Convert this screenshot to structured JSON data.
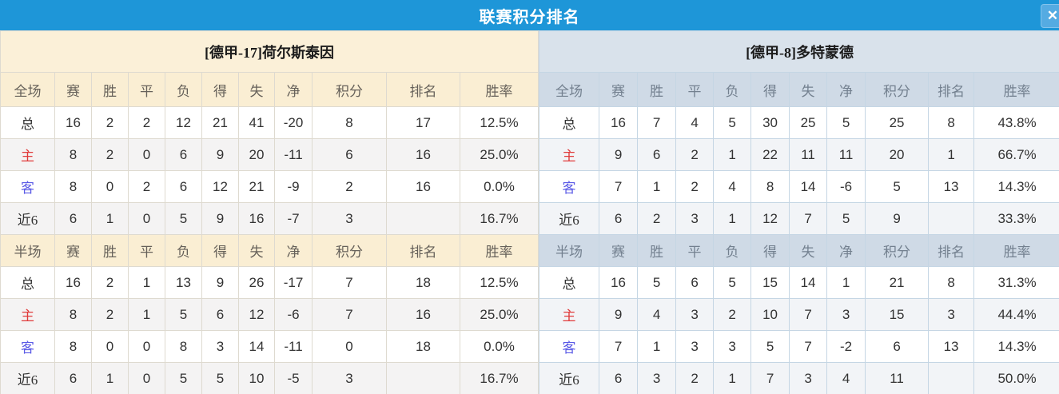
{
  "title_bar": {
    "title": "联赛积分排名",
    "close_label": "✕"
  },
  "colors": {
    "titlebar_bg": "#1E96D8",
    "left_header_bg": "#FBF0D8",
    "right_header_bg": "#D9E2EB",
    "points_and_rate_text": "#F8432A",
    "rank_text": "#3F86D9",
    "home_label_text": "#E03A3A",
    "away_label_text": "#5A5AE6"
  },
  "columns": {
    "stats": [
      "赛",
      "胜",
      "平",
      "负",
      "得",
      "失",
      "净",
      "积分",
      "排名",
      "胜率"
    ]
  },
  "panels": [
    {
      "team": "[德甲-17]荷尔斯泰因",
      "sections": [
        {
          "header": "全场",
          "rows": [
            {
              "label": "总",
              "type": "total",
              "cells": [
                "16",
                "2",
                "2",
                "12",
                "21",
                "41",
                "-20",
                "8",
                "17",
                "12.5%"
              ]
            },
            {
              "label": "主",
              "type": "home",
              "cells": [
                "8",
                "2",
                "0",
                "6",
                "9",
                "20",
                "-11",
                "6",
                "16",
                "25.0%"
              ]
            },
            {
              "label": "客",
              "type": "away",
              "cells": [
                "8",
                "0",
                "2",
                "6",
                "12",
                "21",
                "-9",
                "2",
                "16",
                "0.0%"
              ]
            },
            {
              "label": "近6",
              "type": "recent",
              "cells": [
                "6",
                "1",
                "0",
                "5",
                "9",
                "16",
                "-7",
                "3",
                "",
                "16.7%"
              ]
            }
          ]
        },
        {
          "header": "半场",
          "rows": [
            {
              "label": "总",
              "type": "total",
              "cells": [
                "16",
                "2",
                "1",
                "13",
                "9",
                "26",
                "-17",
                "7",
                "18",
                "12.5%"
              ]
            },
            {
              "label": "主",
              "type": "home",
              "cells": [
                "8",
                "2",
                "1",
                "5",
                "6",
                "12",
                "-6",
                "7",
                "16",
                "25.0%"
              ]
            },
            {
              "label": "客",
              "type": "away",
              "cells": [
                "8",
                "0",
                "0",
                "8",
                "3",
                "14",
                "-11",
                "0",
                "18",
                "0.0%"
              ]
            },
            {
              "label": "近6",
              "type": "recent",
              "cells": [
                "6",
                "1",
                "0",
                "5",
                "5",
                "10",
                "-5",
                "3",
                "",
                "16.7%"
              ]
            }
          ]
        }
      ]
    },
    {
      "team": "[德甲-8]多特蒙德",
      "sections": [
        {
          "header": "全场",
          "rows": [
            {
              "label": "总",
              "type": "total",
              "cells": [
                "16",
                "7",
                "4",
                "5",
                "30",
                "25",
                "5",
                "25",
                "8",
                "43.8%"
              ]
            },
            {
              "label": "主",
              "type": "home",
              "cells": [
                "9",
                "6",
                "2",
                "1",
                "22",
                "11",
                "11",
                "20",
                "1",
                "66.7%"
              ]
            },
            {
              "label": "客",
              "type": "away",
              "cells": [
                "7",
                "1",
                "2",
                "4",
                "8",
                "14",
                "-6",
                "5",
                "13",
                "14.3%"
              ]
            },
            {
              "label": "近6",
              "type": "recent",
              "cells": [
                "6",
                "2",
                "3",
                "1",
                "12",
                "7",
                "5",
                "9",
                "",
                "33.3%"
              ]
            }
          ]
        },
        {
          "header": "半场",
          "rows": [
            {
              "label": "总",
              "type": "total",
              "cells": [
                "16",
                "5",
                "6",
                "5",
                "15",
                "14",
                "1",
                "21",
                "8",
                "31.3%"
              ]
            },
            {
              "label": "主",
              "type": "home",
              "cells": [
                "9",
                "4",
                "3",
                "2",
                "10",
                "7",
                "3",
                "15",
                "3",
                "44.4%"
              ]
            },
            {
              "label": "客",
              "type": "away",
              "cells": [
                "7",
                "1",
                "3",
                "3",
                "5",
                "7",
                "-2",
                "6",
                "13",
                "14.3%"
              ]
            },
            {
              "label": "近6",
              "type": "recent",
              "cells": [
                "6",
                "3",
                "2",
                "1",
                "7",
                "3",
                "4",
                "11",
                "",
                "50.0%"
              ]
            }
          ]
        }
      ]
    }
  ]
}
